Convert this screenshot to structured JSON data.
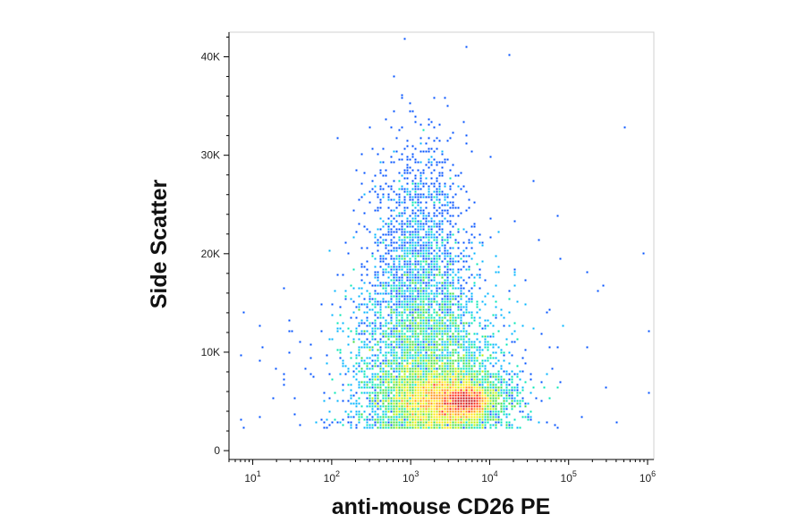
{
  "chart_data": {
    "type": "scatter",
    "subtype": "flow-cytometry density dot plot",
    "xlabel": "anti-mouse CD26 PE",
    "ylabel": "Side Scatter",
    "x_scale": "log",
    "xlim": [
      5,
      1200000
    ],
    "x_ticks": [
      {
        "value": 10,
        "base": "10",
        "exp": "1"
      },
      {
        "value": 100,
        "base": "10",
        "exp": "2"
      },
      {
        "value": 1000,
        "base": "10",
        "exp": "3"
      },
      {
        "value": 10000,
        "base": "10",
        "exp": "4"
      },
      {
        "value": 100000,
        "base": "10",
        "exp": "5"
      },
      {
        "value": 1000000,
        "base": "10",
        "exp": "6"
      }
    ],
    "y_scale": "linear",
    "ylim": [
      -900,
      42500
    ],
    "y_ticks": [
      {
        "value": 0,
        "label": "0"
      },
      {
        "value": 10000,
        "label": "10K"
      },
      {
        "value": 20000,
        "label": "20K"
      },
      {
        "value": 30000,
        "label": "30K"
      },
      {
        "value": 40000,
        "label": "40K"
      }
    ],
    "y_minor_step": 2000,
    "grid": false,
    "legend": "none",
    "density_colormap": [
      "#0000e6",
      "#0050ff",
      "#00b4ff",
      "#00e6b4",
      "#3cdc3c",
      "#b4f000",
      "#ffe600",
      "#ff8c00",
      "#ff1e00",
      "#c80000"
    ],
    "populations": [
      {
        "name": "main",
        "x_log10": 3.4,
        "x_sd": 0.38,
        "y": 5200,
        "y_sd": 1600,
        "n": 9000
      },
      {
        "name": "core",
        "x_log10": 3.7,
        "x_sd": 0.14,
        "y": 5000,
        "y_sd": 700,
        "n": 3500
      },
      {
        "name": "spread",
        "x_log10": 3.2,
        "x_sd": 0.45,
        "y": 9000,
        "y_sd": 4500,
        "n": 5500
      },
      {
        "name": "high-ssc",
        "x_log10": 3.1,
        "x_sd": 0.3,
        "y": 19000,
        "y_sd": 6000,
        "n": 2000
      },
      {
        "name": "sparse",
        "x_log10": 3.0,
        "x_sd": 1.0,
        "y": 9000,
        "y_sd": 7000,
        "n": 250
      }
    ],
    "outliers": [
      {
        "x": 5000,
        "y": 41000
      },
      {
        "x": 18000,
        "y": 40300
      },
      {
        "x": 2000,
        "y": 35800
      },
      {
        "x": 500000,
        "y": 32700
      },
      {
        "x": 900000,
        "y": 20000
      },
      {
        "x": 170000,
        "y": 18000
      },
      {
        "x": 25,
        "y": 16500
      },
      {
        "x": 40,
        "y": 11000
      },
      {
        "x": 12,
        "y": 9200
      },
      {
        "x": 300000,
        "y": 6500
      },
      {
        "x": 400000,
        "y": 3000
      },
      {
        "x": 1000000,
        "y": 12000
      },
      {
        "x": 1050000,
        "y": 6000
      }
    ]
  }
}
